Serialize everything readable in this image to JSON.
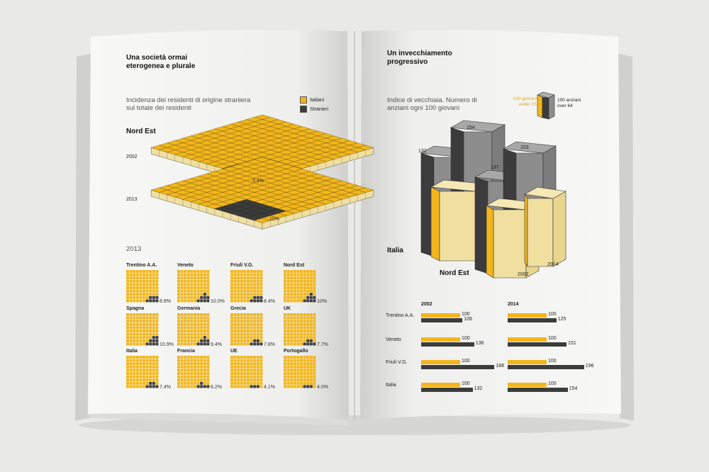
{
  "colors": {
    "yellow": "#f2b61c",
    "pale": "#f0df9e",
    "dark": "#3c3c3c",
    "grey": "#8d8d8d",
    "background": "#e9e9e7",
    "page": "#f8f8f6"
  },
  "left_page": {
    "title": "Una società ormai eterogenea e plurale",
    "description": "Incidenza dei residenti di origine straniera sul totale dei residenti",
    "legend": {
      "italiani": "Italiani",
      "stranieri": "Stranieri"
    },
    "region": "Nord Est",
    "layers": [
      {
        "year": "2002",
        "value_label": "3.4%"
      },
      {
        "year": "2013",
        "value_label": "10%"
      }
    ],
    "grid_year": "2013",
    "grids": [
      {
        "name": "Trentino A.A.",
        "value": "8.8%"
      },
      {
        "name": "Veneto",
        "value": "10.0%"
      },
      {
        "name": "Friuli V.G.",
        "value": "8.4%"
      },
      {
        "name": "Nord Est",
        "value": "10%"
      },
      {
        "name": "Spagna",
        "value": "10.9%"
      },
      {
        "name": "Germania",
        "value": "9.4%"
      },
      {
        "name": "Grecia",
        "value": "7.8%"
      },
      {
        "name": "UK",
        "value": "7.7%"
      },
      {
        "name": "Italia",
        "value": "7.4%"
      },
      {
        "name": "Francia",
        "value": "6.2%"
      },
      {
        "name": "UE",
        "value": "4.1%"
      },
      {
        "name": "Portogallo",
        "value": "4.0%"
      }
    ]
  },
  "right_page": {
    "title": "Un invecchiamento progressivo",
    "description": "Indice di vecchiaia. Numero di anziani ogni 100 giovani",
    "legend": {
      "giovani": "100 giovani under 15",
      "anziani": "100 anziani over 64"
    },
    "iso_labels": {
      "italia": "Italia",
      "nord_est": "Nord Est",
      "year_a": "2002",
      "year_b": "2014"
    },
    "iso_values": [
      {
        "group": "Italia",
        "year": "2002",
        "value": "132"
      },
      {
        "group": "Italia",
        "year": "2014",
        "value": "154"
      },
      {
        "group": "Nord Est",
        "year": "2002",
        "value": "137"
      },
      {
        "group": "Nord Est",
        "year": "2014",
        "value": "153"
      }
    ],
    "bars": {
      "years": [
        "2002",
        "2014"
      ],
      "rows": [
        {
          "name": "Trentino A.A.",
          "y2002": [
            100,
            106
          ],
          "y2014": [
            100,
            125
          ]
        },
        {
          "name": "Veneto",
          "y2002": [
            100,
            136
          ],
          "y2014": [
            100,
            151
          ]
        },
        {
          "name": "Friuli V.G.",
          "y2002": [
            100,
            188
          ],
          "y2014": [
            100,
            196
          ]
        },
        {
          "name": "Italia",
          "y2002": [
            100,
            132
          ],
          "y2014": [
            100,
            154
          ]
        }
      ]
    }
  }
}
